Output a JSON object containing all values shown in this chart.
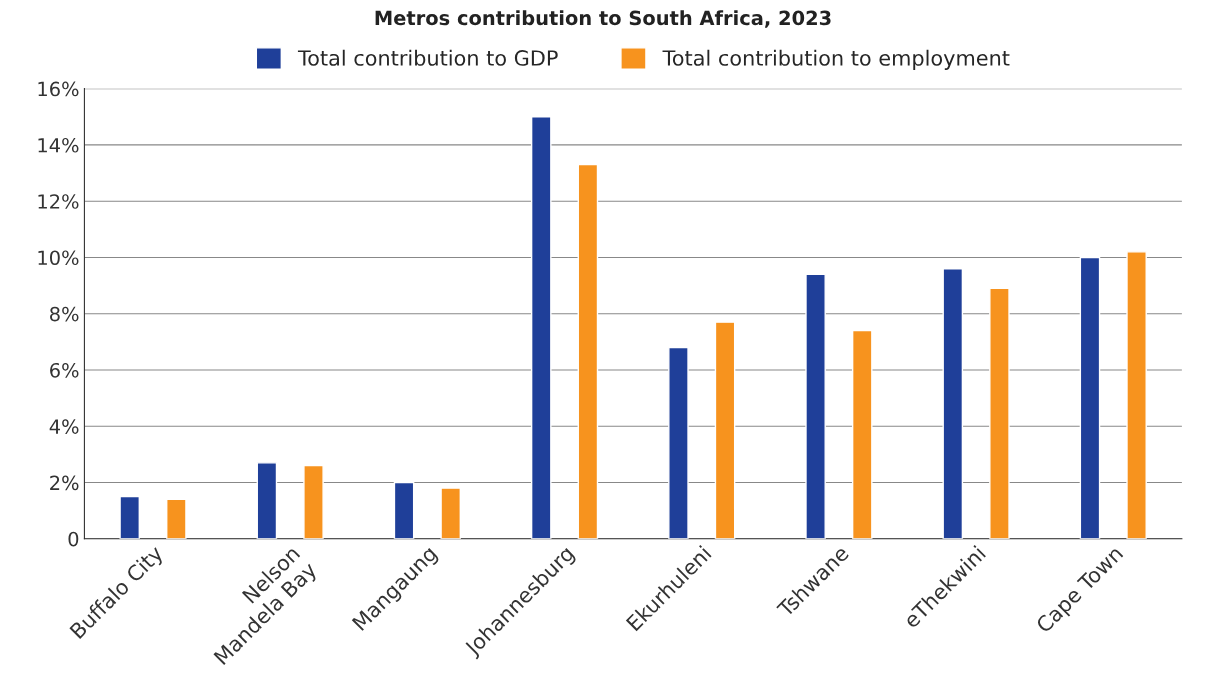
{
  "chart_data": {
    "type": "bar",
    "title": "Metros contribution to South Africa, 2023",
    "categories": [
      "Buffalo City",
      "Nelson\nMandela Bay",
      "Mangaung",
      "Johannesburg",
      "Ekurhuleni",
      "Tshwane",
      "eThekwini",
      "Cape Town"
    ],
    "series": [
      {
        "name": "Total contribution to GDP",
        "color": "#1f3f99",
        "values": [
          1.5,
          2.7,
          2.0,
          15.0,
          6.8,
          9.4,
          9.6,
          10.0
        ]
      },
      {
        "name": "Total contribution to employment",
        "color": "#f7931e",
        "values": [
          1.4,
          2.6,
          1.8,
          13.3,
          7.7,
          7.4,
          8.9,
          10.2
        ]
      }
    ],
    "ylim": [
      0,
      16
    ],
    "yticks": [
      0,
      {
        "value": 2,
        "label": "2%"
      },
      {
        "value": 4,
        "label": "4%"
      },
      {
        "value": 6,
        "label": "6%"
      },
      {
        "value": 8,
        "label": "8%"
      },
      {
        "value": 10,
        "label": "10%"
      },
      {
        "value": 12,
        "label": "12%"
      },
      {
        "value": 14,
        "label": "14%"
      },
      {
        "value": 16,
        "label": "16%"
      }
    ],
    "grid": "y",
    "legend": "top"
  }
}
